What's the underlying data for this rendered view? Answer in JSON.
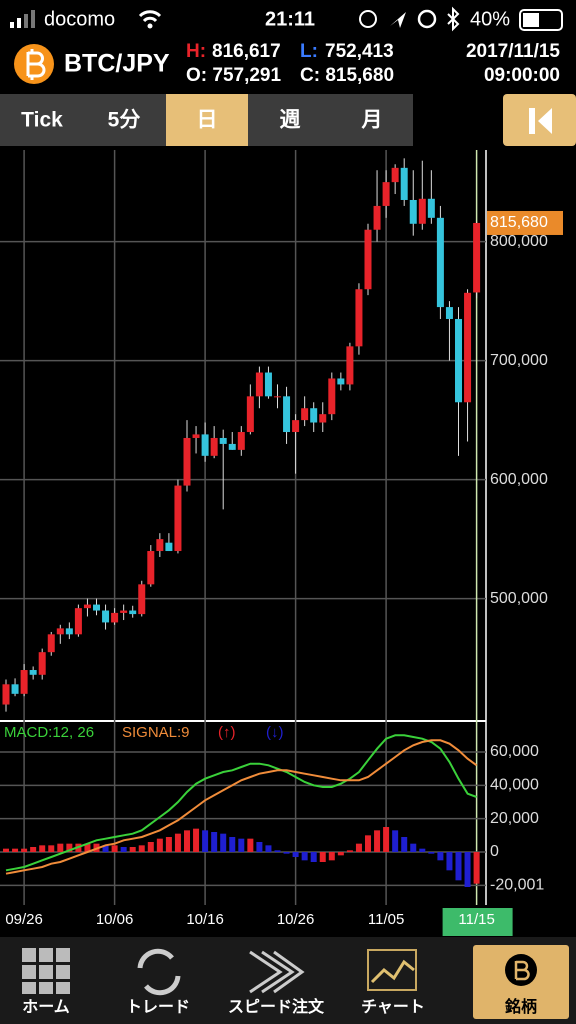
{
  "status_bar": {
    "carrier": "docomo",
    "time": "21:11",
    "battery": "40%"
  },
  "header": {
    "symbol": "BTC/JPY",
    "high_key": "H:",
    "high": "816,617",
    "low_key": "L:",
    "low": "752,413",
    "open": "O: 757,291",
    "close": "C: 815,680",
    "date": "2017/11/15",
    "time": "09:00:00"
  },
  "tabs": [
    "Tick",
    "5分",
    "日",
    "週",
    "月"
  ],
  "nav": [
    "ホーム",
    "トレード",
    "スピード注文",
    "チャート",
    "銘柄"
  ],
  "chart_data": [
    {
      "type": "candlestick",
      "categories": [
        null,
        null,
        "09/26",
        null,
        null,
        null,
        null,
        null,
        null,
        null,
        null,
        null,
        "10/06",
        null,
        null,
        null,
        null,
        null,
        null,
        null,
        null,
        null,
        "10/16",
        null,
        null,
        null,
        null,
        null,
        null,
        null,
        null,
        null,
        "10/26",
        null,
        null,
        null,
        null,
        null,
        null,
        null,
        null,
        null,
        "11/05",
        null,
        null,
        null,
        null,
        null,
        null,
        null,
        null,
        null,
        "11/15"
      ],
      "open": [
        411000,
        428000,
        420000,
        440000,
        436000,
        455000,
        470000,
        475000,
        470000,
        492000,
        495000,
        490000,
        480000,
        488000,
        490000,
        487000,
        512000,
        540000,
        547000,
        540000,
        595000,
        635000,
        638000,
        620000,
        635000,
        630000,
        625000,
        640000,
        670000,
        690000,
        670000,
        670000,
        640000,
        650000,
        660000,
        648000,
        655000,
        685000,
        680000,
        712000,
        760000,
        810000,
        830000,
        850000,
        862000,
        835000,
        815000,
        836000,
        820000,
        745000,
        735000,
        665000,
        757291
      ],
      "high": [
        432000,
        433000,
        445000,
        443000,
        458000,
        472000,
        478000,
        480000,
        495000,
        500000,
        500000,
        495000,
        492000,
        495000,
        494000,
        515000,
        545000,
        555000,
        555000,
        600000,
        650000,
        645000,
        648000,
        645000,
        642000,
        640000,
        645000,
        680000,
        695000,
        695000,
        680000,
        678000,
        655000,
        670000,
        665000,
        665000,
        690000,
        690000,
        715000,
        765000,
        815000,
        860000,
        860000,
        865000,
        870000,
        860000,
        868000,
        860000,
        830000,
        750000,
        745000,
        760000,
        816617
      ],
      "low": [
        405000,
        418000,
        418000,
        432000,
        432000,
        452000,
        462000,
        466000,
        468000,
        485000,
        486000,
        474000,
        478000,
        482000,
        484000,
        485000,
        510000,
        535000,
        540000,
        538000,
        590000,
        622000,
        615000,
        618000,
        575000,
        625000,
        620000,
        638000,
        660000,
        668000,
        660000,
        630000,
        605000,
        645000,
        640000,
        640000,
        650000,
        675000,
        675000,
        705000,
        755000,
        800000,
        820000,
        840000,
        830000,
        805000,
        810000,
        815000,
        735000,
        700000,
        620000,
        632000,
        752413
      ],
      "close": [
        428000,
        420000,
        440000,
        436000,
        455000,
        470000,
        475000,
        470000,
        492000,
        495000,
        490000,
        480000,
        488000,
        490000,
        487000,
        512000,
        540000,
        550000,
        540000,
        595000,
        635000,
        638000,
        620000,
        635000,
        630000,
        625000,
        640000,
        670000,
        690000,
        670000,
        670000,
        640000,
        650000,
        660000,
        648000,
        655000,
        685000,
        680000,
        712000,
        760000,
        810000,
        830000,
        850000,
        862000,
        835000,
        815000,
        836000,
        820000,
        745000,
        735000,
        665000,
        757000,
        815680
      ],
      "up_color": "#e8232a",
      "down_color": "#35c4dd",
      "ylim": [
        398000,
        877000
      ],
      "yticks": [
        {
          "value": 500000,
          "label": "500,000"
        },
        {
          "value": 600000,
          "label": "600,000"
        },
        {
          "value": 700000,
          "label": "700,000"
        },
        {
          "value": 800000,
          "label": "800,000"
        }
      ],
      "last_label": "815,680",
      "grid": true
    },
    {
      "type": "macd",
      "series": [
        {
          "name": "MACD:12, 26",
          "color": "#3ad13a",
          "values": [
            -11000,
            -10000,
            -9000,
            -7000,
            -5000,
            -3000,
            -1000,
            1000,
            3000,
            5000,
            7000,
            8000,
            9000,
            10000,
            11000,
            13000,
            17000,
            21000,
            25000,
            30000,
            36000,
            41000,
            44000,
            46000,
            48000,
            49000,
            51000,
            53000,
            53000,
            52000,
            50000,
            48000,
            45000,
            42000,
            40000,
            39000,
            39000,
            41000,
            44000,
            48000,
            55000,
            62000,
            68000,
            70000,
            70000,
            69000,
            68000,
            66000,
            62000,
            54000,
            44000,
            35000,
            33000
          ]
        },
        {
          "name": "SIGNAL:9",
          "color": "#f08c3a",
          "values": [
            -13000,
            -12000,
            -11000,
            -10000,
            -9000,
            -7000,
            -6000,
            -4000,
            -2000,
            0,
            2000,
            4000,
            5000,
            7000,
            8000,
            9000,
            11000,
            13000,
            16000,
            19000,
            23000,
            27000,
            31000,
            34000,
            37000,
            40000,
            43000,
            45000,
            47000,
            48000,
            49000,
            49000,
            48000,
            47000,
            46000,
            45000,
            44000,
            43000,
            43000,
            43000,
            45000,
            49000,
            53000,
            57000,
            61000,
            64000,
            66000,
            67000,
            67000,
            65000,
            61000,
            56000,
            52000
          ]
        }
      ],
      "histogram": {
        "up_label": "(↑)",
        "down_label": "(↓)",
        "up_color": "#e8232a",
        "down_color": "#1f1fd0",
        "values": [
          2000,
          2000,
          2000,
          3000,
          4000,
          4000,
          5000,
          5000,
          5000,
          5000,
          5000,
          4000,
          4000,
          3000,
          3000,
          4000,
          6000,
          8000,
          9000,
          11000,
          13000,
          14000,
          13000,
          12000,
          11000,
          9000,
          8000,
          8000,
          6000,
          4000,
          1000,
          -1000,
          -3000,
          -5000,
          -6000,
          -6000,
          -5000,
          -2000,
          1000,
          5000,
          10000,
          13000,
          15000,
          13000,
          9000,
          5000,
          2000,
          -1000,
          -5000,
          -11000,
          -17000,
          -21000,
          -19000
        ]
      },
      "ylim": [
        -31800,
        78000
      ],
      "yticks": [
        {
          "value": -20001,
          "label": "-20,001"
        },
        0,
        {
          "value": 20000,
          "label": "20,000"
        },
        {
          "value": 40000,
          "label": "40,000"
        },
        {
          "value": 60000,
          "label": "60,000"
        }
      ],
      "grid": true
    }
  ]
}
